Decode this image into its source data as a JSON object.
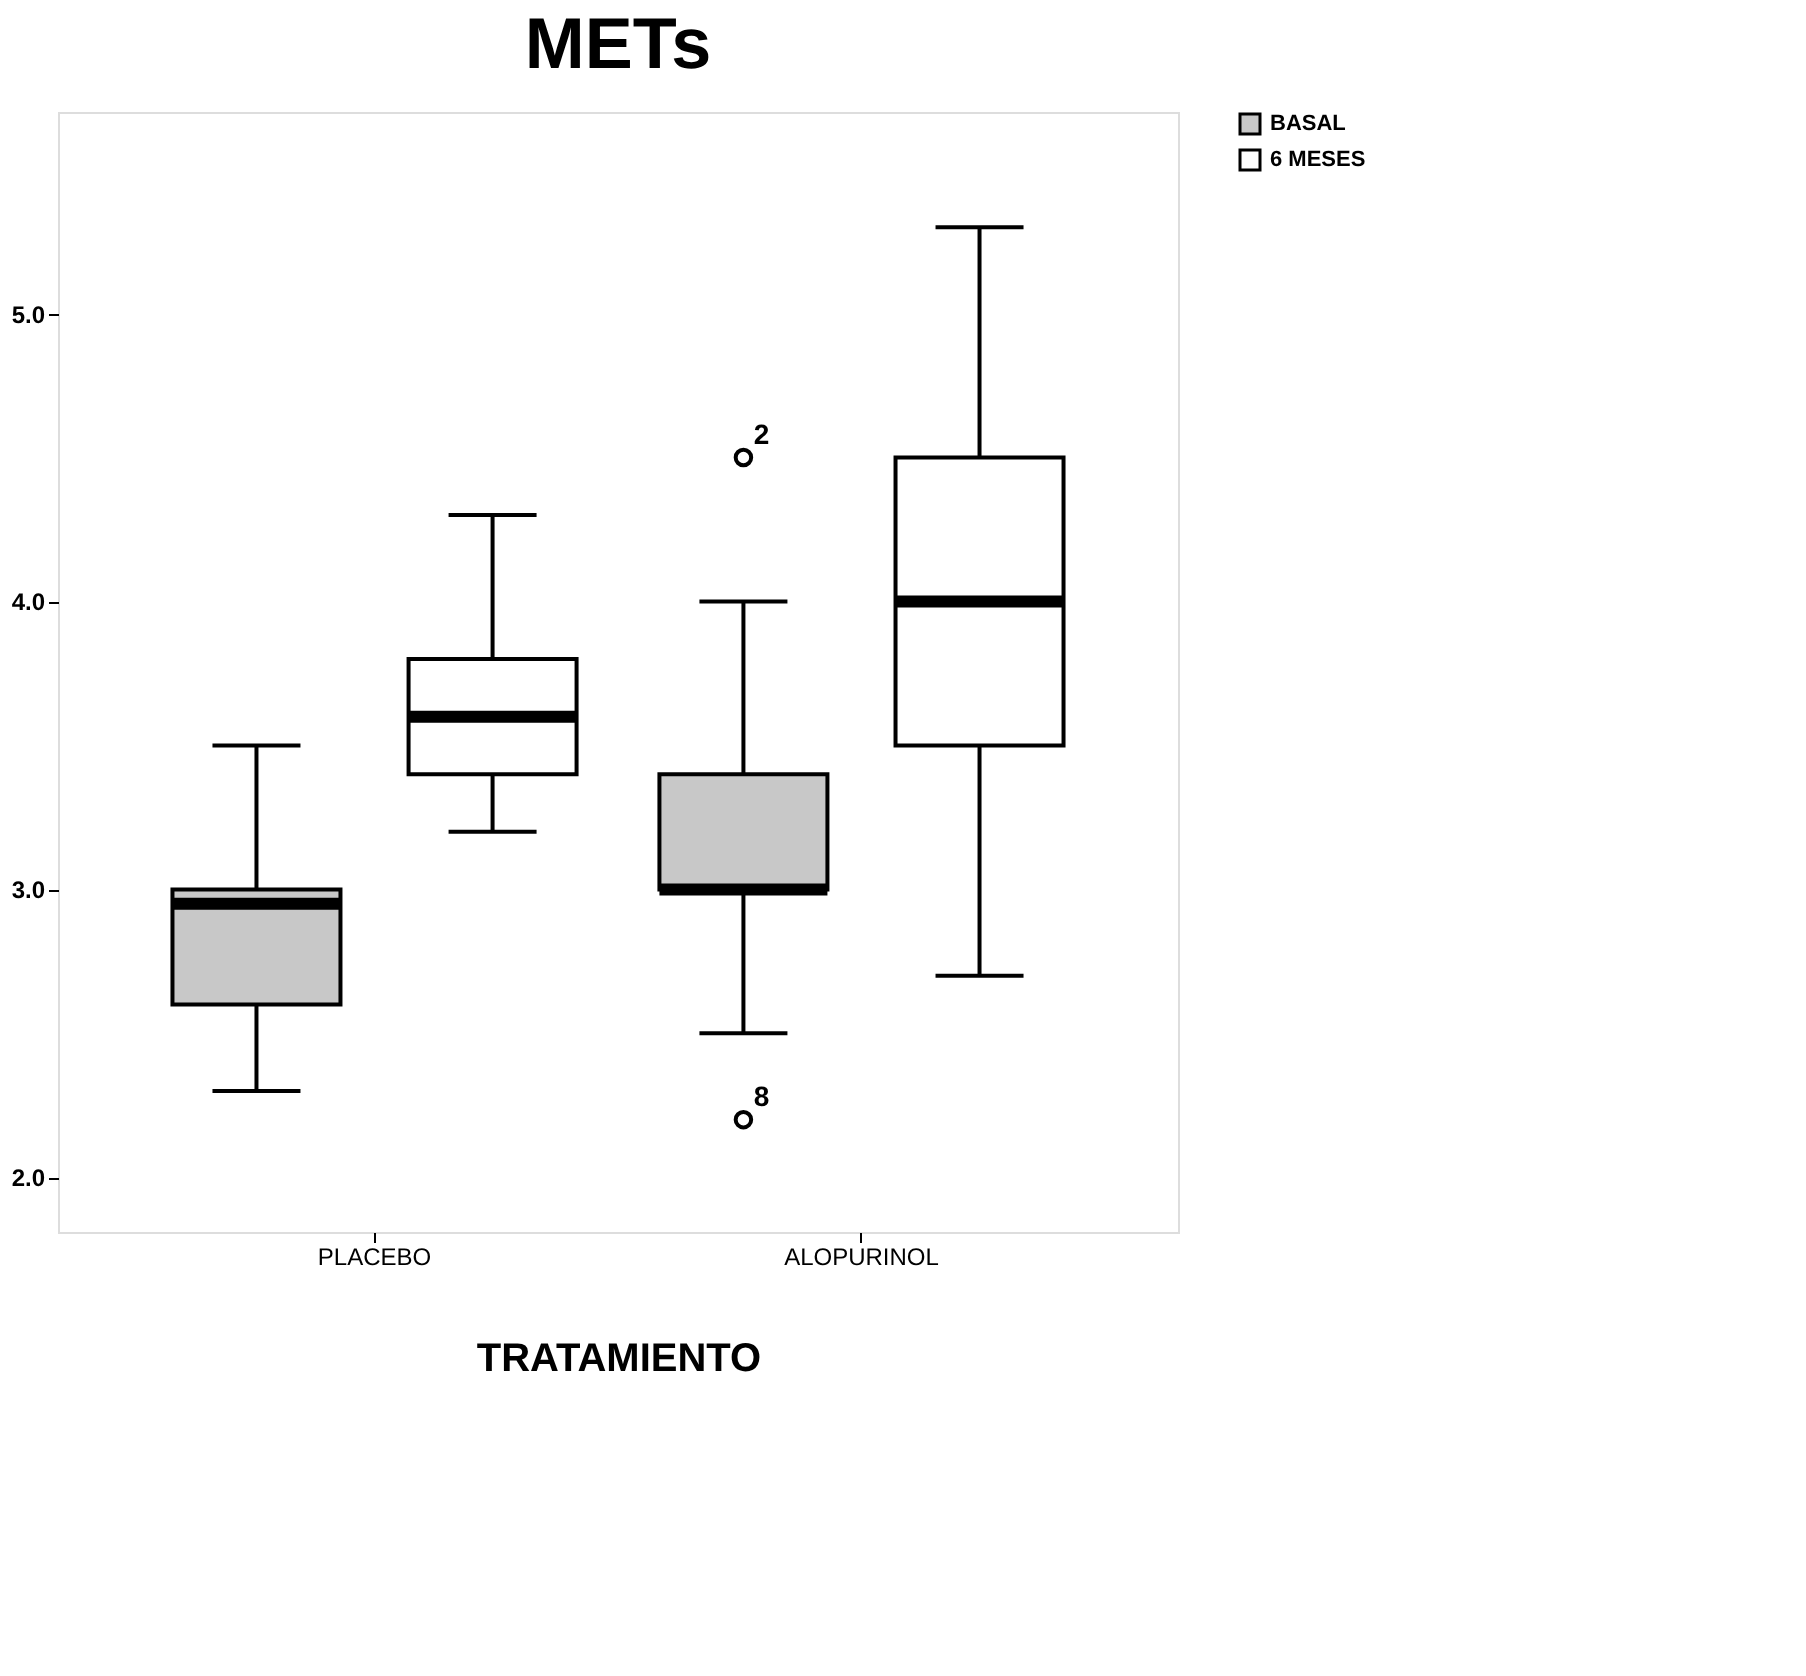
{
  "chart_data": {
    "type": "box",
    "title": "METs",
    "xlabel": "TRATAMIENTO",
    "categories": [
      "PLACEBO",
      "ALOPURINOL"
    ],
    "series": [
      {
        "name": "BASAL",
        "color": "#c8c8c8",
        "boxes": [
          {
            "low": 2.3,
            "q1": 2.6,
            "median": 2.95,
            "q3": 3.0,
            "high": 3.5
          },
          {
            "low": 2.5,
            "q1": 3.0,
            "median": 3.0,
            "q3": 3.4,
            "high": 4.0,
            "outliers": [
              4.5,
              2.2
            ]
          }
        ]
      },
      {
        "name": "6 MESES",
        "color": "#ffffff",
        "boxes": [
          {
            "low": 3.2,
            "q1": 3.4,
            "median": 3.6,
            "q3": 3.8,
            "high": 4.3
          },
          {
            "low": 2.7,
            "q1": 3.5,
            "median": 4.0,
            "q3": 4.5,
            "high": 5.3
          }
        ]
      }
    ],
    "ylim": [
      1.81,
      5.7
    ],
    "yticks": [
      {
        "value": 2,
        "label": "2.0"
      },
      {
        "value": 3,
        "label": "3.0"
      },
      {
        "value": 4,
        "label": "4.0"
      },
      {
        "value": 5,
        "label": "5.0"
      }
    ],
    "annotations": [
      "2",
      "8"
    ],
    "grid": false,
    "legend": "top right",
    "marker": "circle"
  }
}
